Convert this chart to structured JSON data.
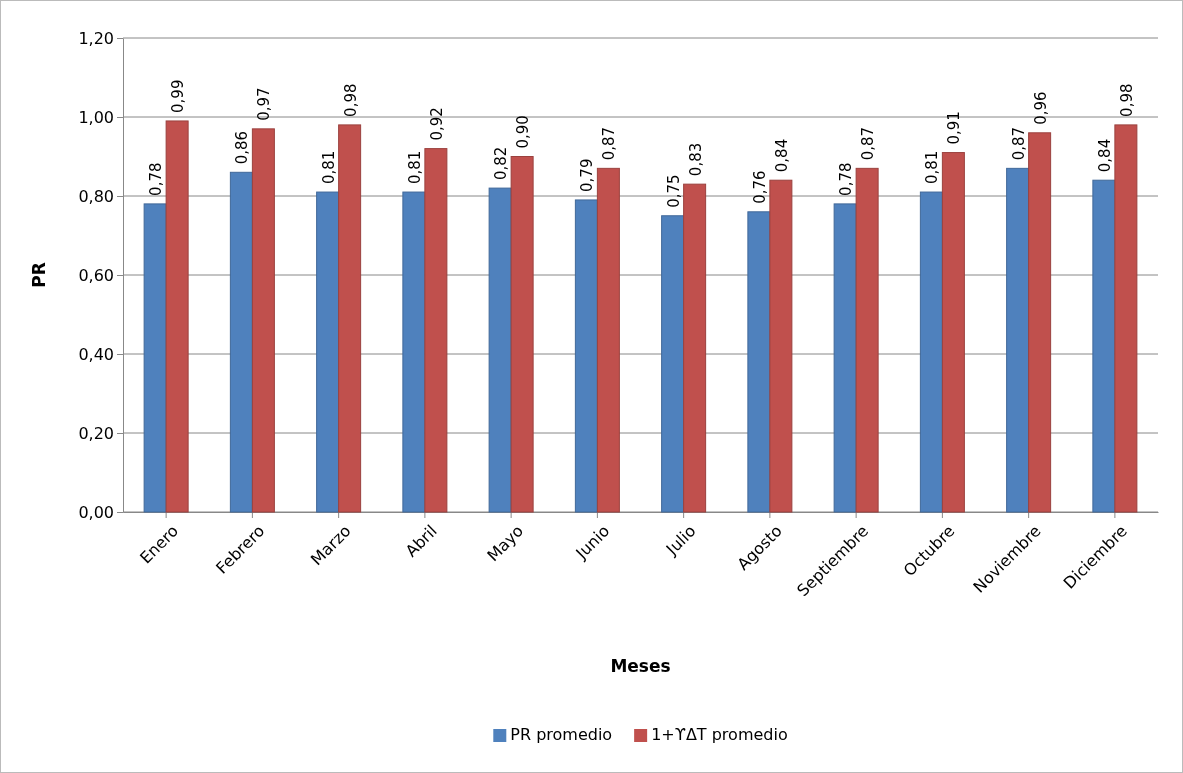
{
  "chart_data": {
    "type": "bar",
    "xlabel": "Meses",
    "ylabel": "PR",
    "categories": [
      "Enero",
      "Febrero",
      "Marzo",
      "Abril",
      "Mayo",
      "Junio",
      "Julio",
      "Agosto",
      "Septiembre",
      "Octubre",
      "Noviembre",
      "Diciembre"
    ],
    "series": [
      {
        "name": "PR promedio",
        "color": "#4f81bd",
        "values": [
          0.78,
          0.86,
          0.81,
          0.81,
          0.82,
          0.79,
          0.75,
          0.76,
          0.78,
          0.81,
          0.87,
          0.84
        ],
        "value_labels": [
          "0,78",
          "0,86",
          "0,81",
          "0,81",
          "0,82",
          "0,79",
          "0,75",
          "0,76",
          "0,78",
          "0,81",
          "0,87",
          "0,84"
        ]
      },
      {
        "name": "1+ϒΔT promedio",
        "color": "#c0504d",
        "values": [
          0.99,
          0.97,
          0.98,
          0.92,
          0.9,
          0.87,
          0.83,
          0.84,
          0.87,
          0.91,
          0.96,
          0.98
        ],
        "value_labels": [
          "0,99",
          "0,97",
          "0,98",
          "0,92",
          "0,90",
          "0,87",
          "0,83",
          "0,84",
          "0,87",
          "0,91",
          "0,96",
          "0,98"
        ]
      }
    ],
    "ylim": [
      0,
      1.2
    ],
    "yticks": [
      {
        "value": 0,
        "label": "0,00"
      },
      {
        "value": 0.2,
        "label": "0,20"
      },
      {
        "value": 0.4,
        "label": "0,40"
      },
      {
        "value": 0.6,
        "label": "0,60"
      },
      {
        "value": 0.8,
        "label": "0,80"
      },
      {
        "value": 1.0,
        "label": "1,00"
      },
      {
        "value": 1.2,
        "label": "1,20"
      }
    ],
    "grid": "y",
    "legend": "bottom"
  }
}
